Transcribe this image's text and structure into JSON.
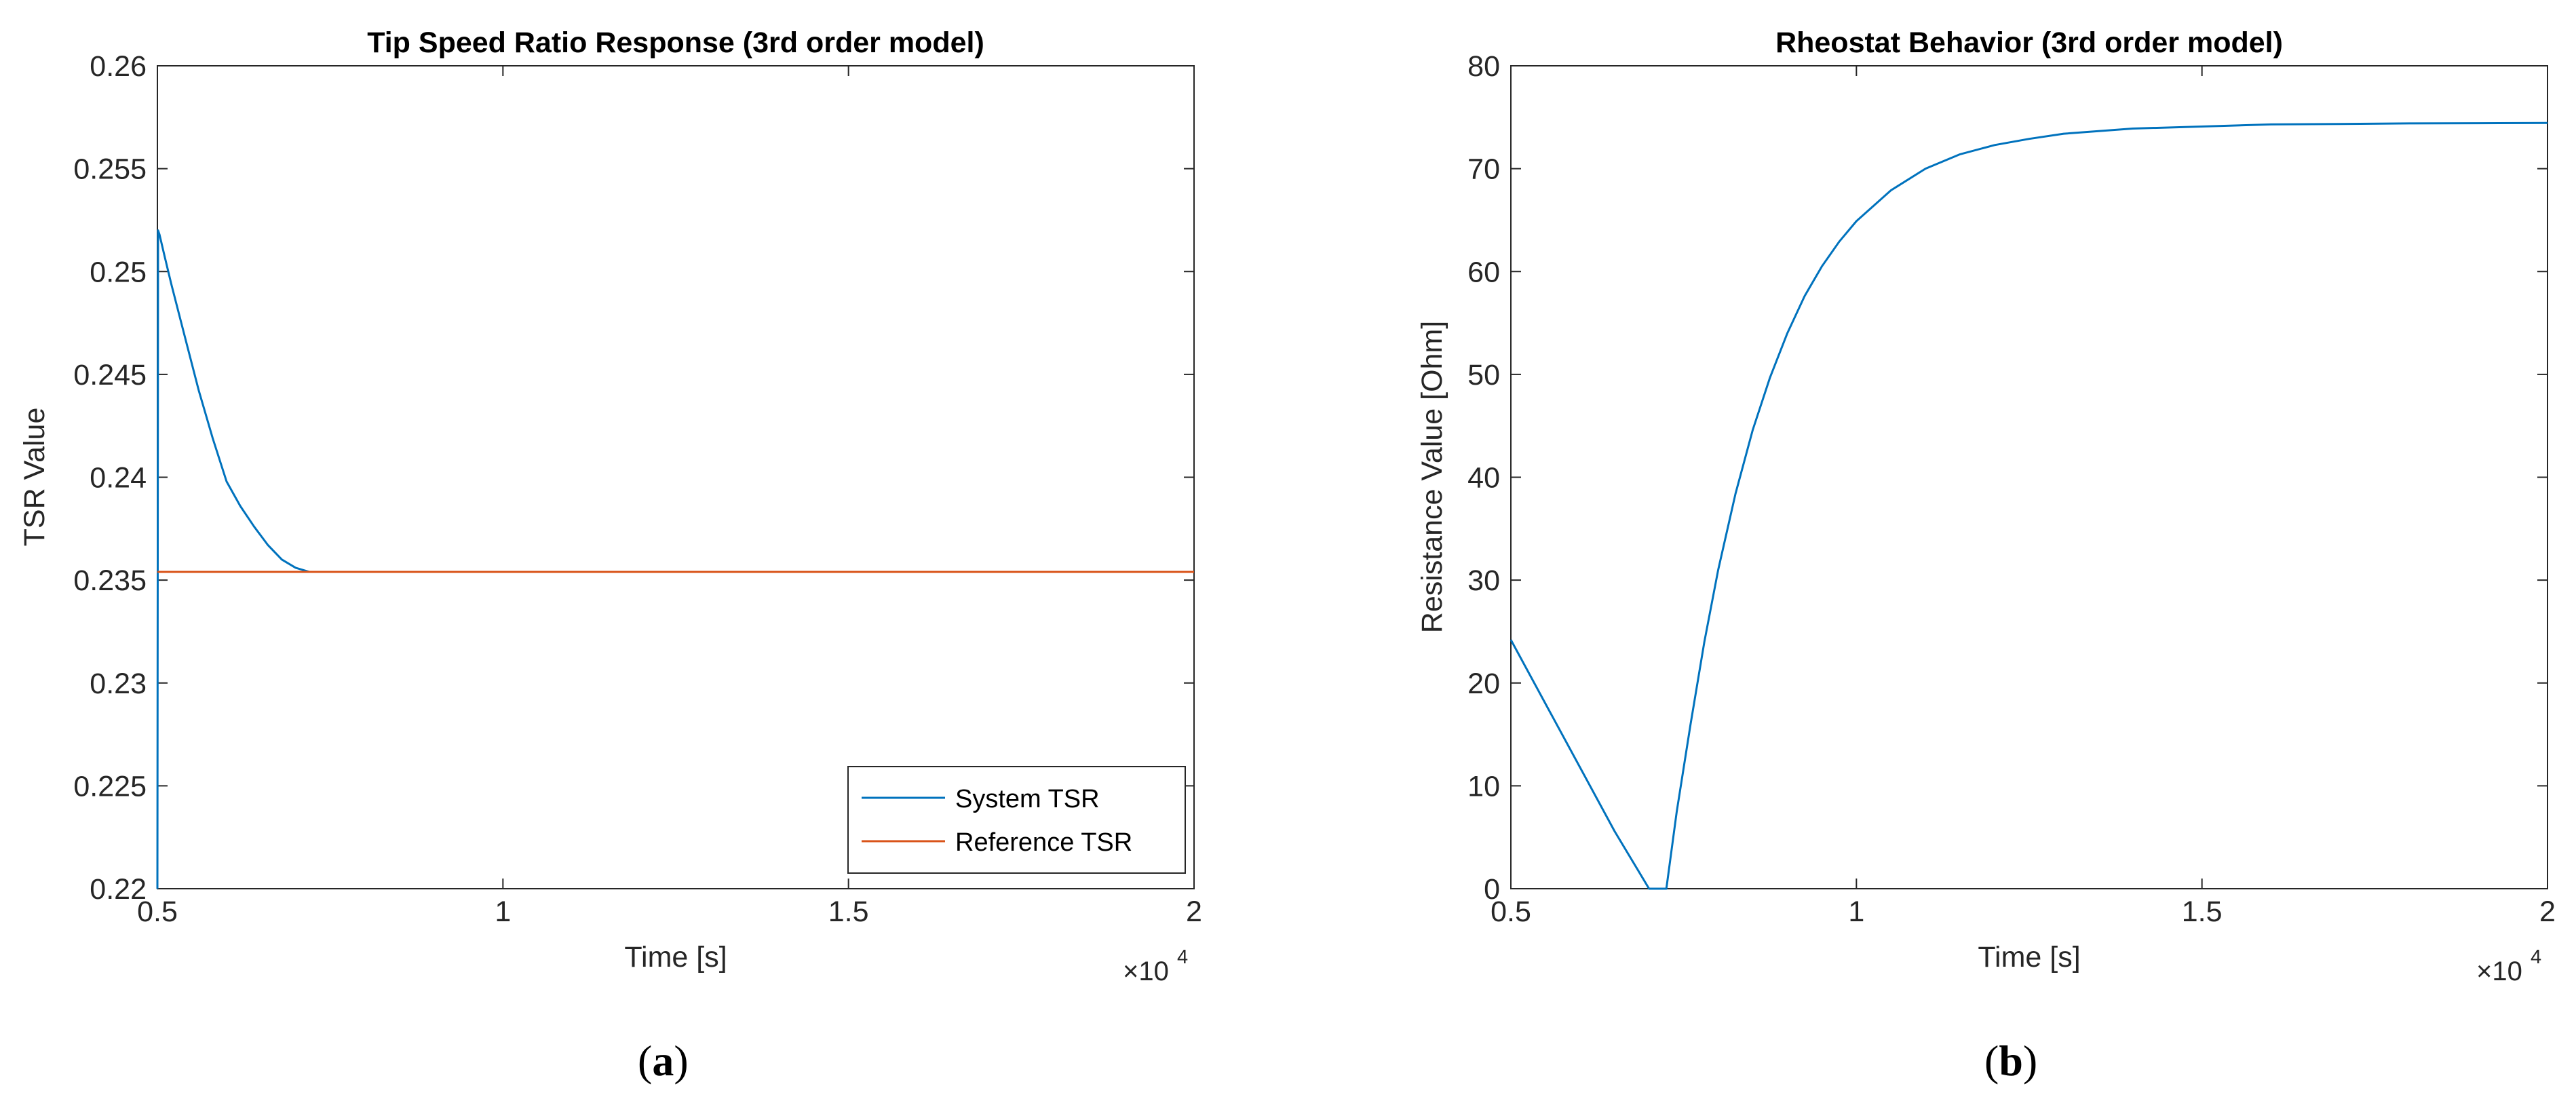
{
  "chart_data": [
    {
      "type": "line",
      "panel_label": "a",
      "title": "Tip Speed Ratio Response (3rd order model)",
      "xlabel": "Time [s]",
      "ylabel": "TSR Value",
      "x_multiplier": "×10",
      "x_multiplier_exp": "4",
      "xlim": [
        0.5,
        2
      ],
      "ylim": [
        0.22,
        0.26
      ],
      "xticks": [
        0.5,
        1,
        1.5,
        2
      ],
      "xtick_labels": [
        "0.5",
        "1",
        "1.5",
        "2"
      ],
      "yticks": [
        0.22,
        0.225,
        0.23,
        0.235,
        0.24,
        0.245,
        0.25,
        0.255,
        0.26
      ],
      "ytick_labels": [
        "0.22",
        "0.225",
        "0.23",
        "0.235",
        "0.24",
        "0.245",
        "0.25",
        "0.255",
        "0.26"
      ],
      "grid": false,
      "legend_position": "bottom-right",
      "series": [
        {
          "name": "System TSR",
          "color": "#0072BD",
          "x": [
            0.5,
            0.501,
            0.503,
            0.51,
            0.52,
            0.54,
            0.56,
            0.58,
            0.6,
            0.62,
            0.64,
            0.66,
            0.68,
            0.7,
            0.72,
            0.73
          ],
          "y": [
            0.22,
            0.252,
            0.2518,
            0.2508,
            0.2494,
            0.2468,
            0.2442,
            0.2419,
            0.2398,
            0.2386,
            0.2376,
            0.2367,
            0.236,
            0.2356,
            0.2354,
            0.2354
          ]
        },
        {
          "name": "Reference TSR",
          "color": "#D95319",
          "x": [
            0.5,
            2
          ],
          "y": [
            0.2354,
            0.2354
          ]
        }
      ]
    },
    {
      "type": "line",
      "panel_label": "b",
      "title": "Rheostat Behavior (3rd order model)",
      "xlabel": "Time [s]",
      "ylabel": "Resistance Value [Ohm]",
      "x_multiplier": "×10",
      "x_multiplier_exp": "4",
      "xlim": [
        0.5,
        2
      ],
      "ylim": [
        0,
        80
      ],
      "xticks": [
        0.5,
        1,
        1.5,
        2
      ],
      "xtick_labels": [
        "0.5",
        "1",
        "1.5",
        "2"
      ],
      "yticks": [
        0,
        10,
        20,
        30,
        40,
        50,
        60,
        70,
        80
      ],
      "ytick_labels": [
        "0",
        "10",
        "20",
        "30",
        "40",
        "50",
        "60",
        "70",
        "80"
      ],
      "grid": false,
      "series": [
        {
          "color": "#0072BD",
          "x": [
            0.5,
            0.55,
            0.6,
            0.65,
            0.7,
            0.715,
            0.725,
            0.74,
            0.76,
            0.78,
            0.8,
            0.825,
            0.85,
            0.875,
            0.9,
            0.925,
            0.95,
            0.975,
            1.0,
            1.05,
            1.1,
            1.15,
            1.2,
            1.25,
            1.3,
            1.4,
            1.5,
            1.6,
            1.7,
            1.8,
            1.9,
            2.0
          ],
          "y": [
            24.2,
            18.0,
            11.8,
            5.6,
            0.0,
            0.0,
            0.0,
            7.5,
            16.0,
            24.0,
            31.0,
            38.4,
            44.6,
            49.7,
            54.0,
            57.6,
            60.5,
            62.9,
            64.9,
            67.9,
            70.0,
            71.4,
            72.3,
            72.9,
            73.4,
            73.9,
            74.1,
            74.3,
            74.35,
            74.4,
            74.42,
            74.44
          ]
        }
      ]
    }
  ]
}
